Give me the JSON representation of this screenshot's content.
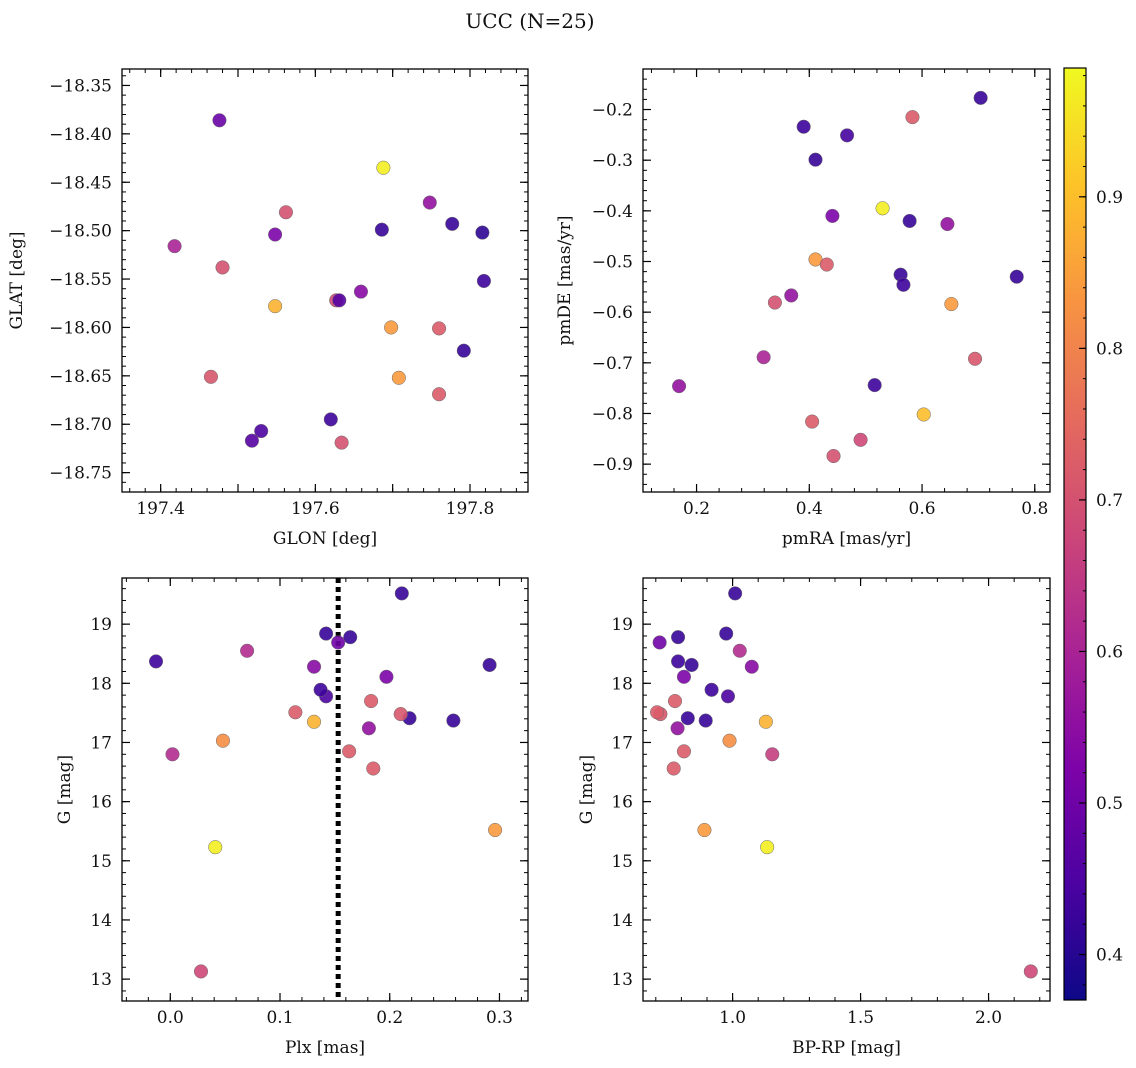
{
  "figure": {
    "title": "UCC (N=25)"
  },
  "colorbar": {
    "min": 0.37,
    "max": 0.985,
    "ticks": [
      0.4,
      0.5,
      0.6,
      0.7,
      0.8,
      0.9
    ]
  },
  "chart_data": [
    {
      "type": "scatter",
      "xlabel": "GLON [deg]",
      "ylabel": "GLAT [deg]",
      "xlim": [
        197.35,
        197.875
      ],
      "ylim": [
        -18.77,
        -18.333
      ],
      "xticks": [
        197.4,
        197.5,
        197.6,
        197.7,
        197.8
      ],
      "xtick_labels": [
        "197.4",
        "",
        "197.6",
        "",
        "197.8"
      ],
      "yticks": [
        -18.35,
        -18.4,
        -18.45,
        -18.5,
        -18.55,
        -18.6,
        -18.65,
        -18.7,
        -18.75
      ],
      "ytick_labels": [
        "−18.35",
        "−18.40",
        "−18.45",
        "−18.50",
        "−18.55",
        "−18.60",
        "−18.65",
        "−18.70",
        "−18.75"
      ],
      "x": [
        197.476,
        197.688,
        197.748,
        197.562,
        197.777,
        197.686,
        197.548,
        197.816,
        197.418,
        197.48,
        197.818,
        197.659,
        197.627,
        197.631,
        197.548,
        197.698,
        197.76,
        197.792,
        197.465,
        197.708,
        197.76,
        197.62,
        197.53,
        197.518,
        197.634
      ],
      "y": [
        -18.386,
        -18.435,
        -18.471,
        -18.481,
        -18.493,
        -18.499,
        -18.504,
        -18.502,
        -18.516,
        -18.538,
        -18.552,
        -18.563,
        -18.572,
        -18.572,
        -18.578,
        -18.6,
        -18.601,
        -18.624,
        -18.651,
        -18.652,
        -18.669,
        -18.695,
        -18.707,
        -18.717,
        -18.719
      ],
      "color_values": [
        0.49,
        0.97,
        0.56,
        0.7,
        0.42,
        0.42,
        0.52,
        0.41,
        0.6,
        0.7,
        0.43,
        0.54,
        0.68,
        0.46,
        0.88,
        0.84,
        0.72,
        0.42,
        0.71,
        0.84,
        0.72,
        0.43,
        0.45,
        0.46,
        0.7
      ]
    },
    {
      "type": "scatter",
      "xlabel": "pmRA [mas/yr]",
      "ylabel": "pmDE [mas/yr]",
      "xlim": [
        0.105,
        0.827
      ],
      "ylim": [
        -0.955,
        -0.12
      ],
      "xticks": [
        0.2,
        0.4,
        0.6,
        0.8
      ],
      "xtick_labels": [
        "0.2",
        "0.4",
        "0.6",
        "0.8"
      ],
      "yticks": [
        -0.2,
        -0.3,
        -0.4,
        -0.5,
        -0.6,
        -0.7,
        -0.8,
        -0.9
      ],
      "ytick_labels": [
        "−0.2",
        "−0.3",
        "−0.4",
        "−0.5",
        "−0.6",
        "−0.7",
        "−0.8",
        "−0.9"
      ],
      "x": [
        0.704,
        0.583,
        0.39,
        0.467,
        0.411,
        0.53,
        0.441,
        0.578,
        0.645,
        0.411,
        0.431,
        0.562,
        0.768,
        0.567,
        0.368,
        0.339,
        0.652,
        0.319,
        0.694,
        0.169,
        0.516,
        0.603,
        0.405,
        0.491,
        0.443
      ],
      "y": [
        -0.177,
        -0.215,
        -0.234,
        -0.251,
        -0.299,
        -0.395,
        -0.41,
        -0.42,
        -0.426,
        -0.496,
        -0.506,
        -0.526,
        -0.53,
        -0.546,
        -0.567,
        -0.581,
        -0.584,
        -0.689,
        -0.692,
        -0.746,
        -0.744,
        -0.802,
        -0.816,
        -0.852,
        -0.884
      ],
      "color_values": [
        0.42,
        0.72,
        0.43,
        0.44,
        0.42,
        0.97,
        0.52,
        0.42,
        0.56,
        0.84,
        0.72,
        0.42,
        0.42,
        0.43,
        0.56,
        0.7,
        0.84,
        0.6,
        0.71,
        0.56,
        0.43,
        0.9,
        0.72,
        0.68,
        0.7
      ]
    },
    {
      "type": "scatter",
      "xlabel": "Plx [mas]",
      "ylabel": "G [mag]",
      "xlim": [
        -0.044,
        0.326
      ],
      "ylim": [
        12.63,
        19.78
      ],
      "xticks": [
        0.0,
        0.1,
        0.2,
        0.3
      ],
      "xtick_labels": [
        "0.0",
        "0.1",
        "0.2",
        "0.3"
      ],
      "yticks": [
        13,
        14,
        15,
        16,
        17,
        18,
        19
      ],
      "ytick_labels": [
        "13",
        "14",
        "15",
        "16",
        "17",
        "18",
        "19"
      ],
      "vline_x": 0.153,
      "x": [
        0.028,
        0.041,
        0.296,
        0.002,
        0.048,
        0.185,
        0.163,
        0.181,
        0.218,
        0.258,
        0.131,
        0.21,
        0.114,
        0.183,
        0.142,
        0.137,
        0.197,
        0.291,
        0.131,
        -0.013,
        0.07,
        0.153,
        0.164,
        0.142,
        0.211
      ],
      "y": [
        13.13,
        15.23,
        15.52,
        16.8,
        17.03,
        16.56,
        16.85,
        17.24,
        17.41,
        17.37,
        17.35,
        17.48,
        17.51,
        17.7,
        17.78,
        17.89,
        18.11,
        18.31,
        18.28,
        18.37,
        18.55,
        18.69,
        18.78,
        18.84,
        19.52
      ],
      "color_values": [
        0.68,
        0.97,
        0.84,
        0.62,
        0.82,
        0.72,
        0.72,
        0.56,
        0.42,
        0.42,
        0.88,
        0.71,
        0.72,
        0.72,
        0.45,
        0.43,
        0.52,
        0.42,
        0.54,
        0.43,
        0.62,
        0.5,
        0.42,
        0.42,
        0.42
      ]
    },
    {
      "type": "scatter",
      "xlabel": "BP-RP [mag]",
      "ylabel": "G [mag]",
      "xlim": [
        0.65,
        2.24
      ],
      "ylim": [
        12.63,
        19.78
      ],
      "xticks": [
        1.0,
        1.5,
        2.0
      ],
      "xtick_labels": [
        "1.0",
        "1.5",
        "2.0"
      ],
      "yticks": [
        13,
        14,
        15,
        16,
        17,
        18,
        19
      ],
      "ytick_labels": [
        "13",
        "14",
        "15",
        "16",
        "17",
        "18",
        "19"
      ],
      "x": [
        2.165,
        1.135,
        0.89,
        0.77,
        1.155,
        0.988,
        0.81,
        0.785,
        0.825,
        0.895,
        1.13,
        0.718,
        0.705,
        0.775,
        0.982,
        0.918,
        0.81,
        0.84,
        1.075,
        0.787,
        1.028,
        0.715,
        0.787,
        0.975,
        1.01
      ],
      "y": [
        13.13,
        15.23,
        15.52,
        16.56,
        16.8,
        17.03,
        16.85,
        17.24,
        17.41,
        17.37,
        17.35,
        17.48,
        17.51,
        17.7,
        17.78,
        17.89,
        18.11,
        18.31,
        18.28,
        18.37,
        18.55,
        18.69,
        18.78,
        18.84,
        19.52
      ],
      "color_values": [
        0.68,
        0.97,
        0.84,
        0.72,
        0.66,
        0.82,
        0.72,
        0.56,
        0.42,
        0.42,
        0.88,
        0.71,
        0.72,
        0.72,
        0.45,
        0.43,
        0.52,
        0.42,
        0.54,
        0.43,
        0.62,
        0.5,
        0.42,
        0.42,
        0.42
      ]
    }
  ]
}
